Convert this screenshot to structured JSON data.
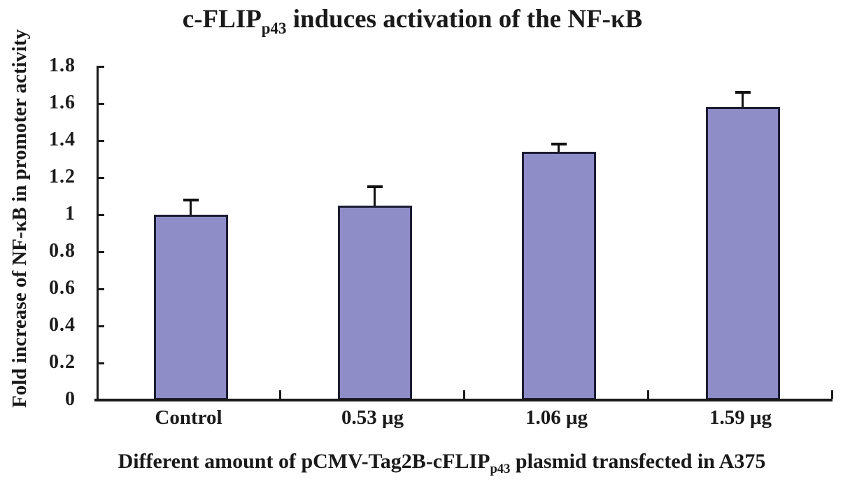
{
  "figure": {
    "title": {
      "prefix": "c-FLIP",
      "subscript": "p43",
      "suffix": " induces activation of the NF-κB"
    },
    "ylabel": "Fold increase of NF-κB in promoter activity",
    "xlabel": {
      "prefix": "Different amount of pCMV-Tag2B-cFLIP",
      "subscript": "p43",
      "suffix": " plasmid transfected in A375"
    }
  },
  "chart_data": {
    "type": "bar",
    "title": "c-FLIP(p43) induces activation of the NF-κB",
    "categories": [
      "Control",
      "0.53 μg",
      "1.06 μg",
      "1.59 μg"
    ],
    "values": [
      1.0,
      1.05,
      1.34,
      1.58
    ],
    "errors_upper": [
      0.08,
      0.1,
      0.04,
      0.08
    ],
    "ylabel": "Fold increase of NF-κB in promoter activity",
    "xlabel": "Different amount of pCMV-Tag2B-cFLIP(p43) plasmid transfected in A375",
    "ylim": [
      0,
      1.8
    ],
    "ytick_step": 0.2,
    "ytick_labels": [
      "0",
      "0.2",
      "0.4",
      "0.6",
      "0.8",
      "1",
      "1.2",
      "1.4",
      "1.6",
      "1.8"
    ],
    "grid": false,
    "legend": null,
    "bar_fill_color": "#8e8dc8",
    "bar_border_color": "#1c1c33",
    "axis_color": "#1a1a1a",
    "error_bar_color": "#111111",
    "background_color": "#ffffff"
  }
}
